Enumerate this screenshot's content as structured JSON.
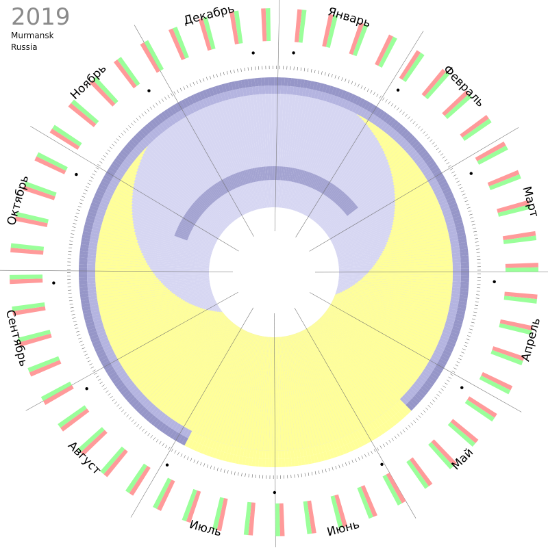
{
  "header": {
    "year": "2019",
    "city": "Murmansk",
    "country": "Russia"
  },
  "chart_data": {
    "type": "polar-daylight-calendar",
    "year": 2019,
    "months": [
      "Январь",
      "Февраль",
      "Март",
      "Апрель",
      "Май",
      "Июнь",
      "Июль",
      "Август",
      "Сентябрь",
      "Октябрь",
      "Ноябрь",
      "Декабрь"
    ],
    "days_in_month": [
      31,
      28,
      31,
      30,
      31,
      30,
      31,
      31,
      30,
      31,
      30,
      31
    ],
    "polar_night": {
      "first_day_of_year": 349,
      "last_day_of_year": 12
    },
    "polar_day": {
      "first_day_of_year": 143,
      "last_day_of_year": 200
    },
    "colors": {
      "daylight": "#ffff99",
      "twilight_civil": "#d6d6f2",
      "twilight_nautical": "#b4b4e0",
      "twilight_astronomical": "#9696c8",
      "week_pink": "#ff9a9a",
      "week_green": "#9aff9a",
      "holiday_box": "#ff8c8c"
    }
  }
}
